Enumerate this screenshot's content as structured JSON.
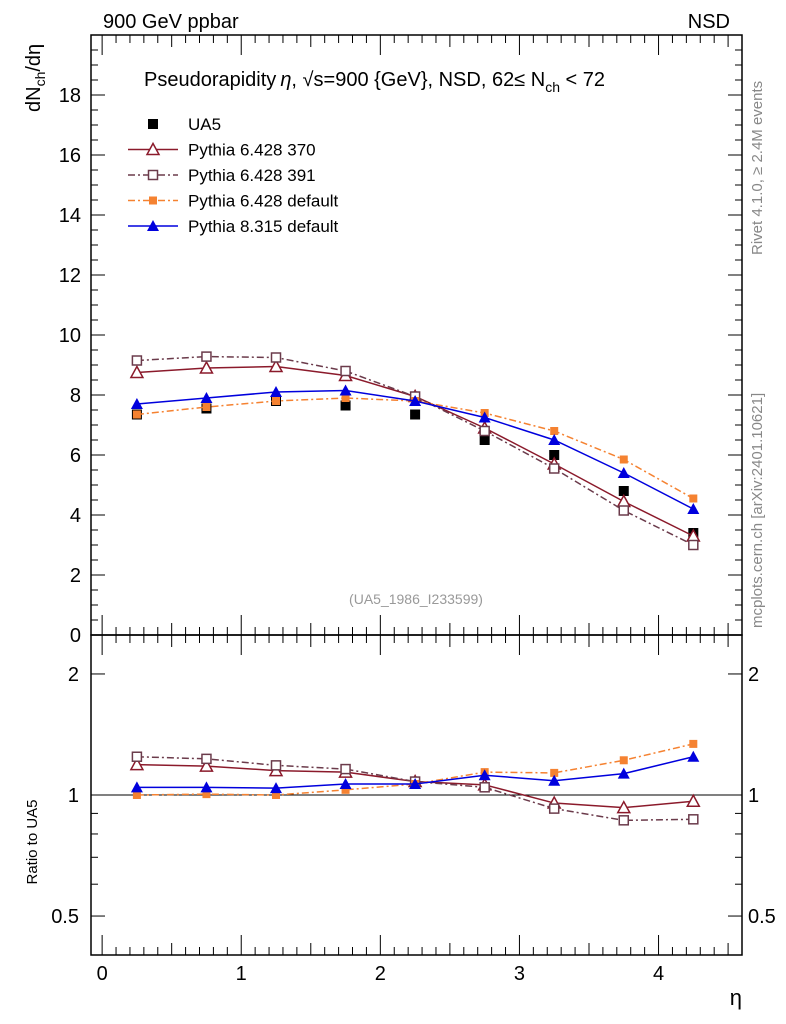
{
  "header": {
    "left": "900 GeV ppbar",
    "right": "NSD"
  },
  "side_labels": {
    "rivet": "Rivet 4.1.0, ≥ 2.4M events",
    "mcplots": "mcplots.cern.ch [arXiv:2401.10621]"
  },
  "colors": {
    "ua5": "#000000",
    "pythia6_370": "#8b1a2b",
    "pythia6_391": "#6b3b4b",
    "pythia6_default": "#f58231",
    "pythia8_default": "#0000dd"
  },
  "chart_data": [
    {
      "type": "line",
      "title": "Pseudorapidity η, √s=900 {GeV}, NSD, 62≤ N_ch < 72",
      "title_parts": {
        "prefix": "Pseudorapidity",
        "eta": "η",
        "sqrt_s": ", √s=900 {GeV}, NSD, 62",
        "le": "≤",
        "n": " N",
        "ch": "ch",
        "lt": " < 72"
      },
      "watermark": "(UA5_1986_I233599)",
      "xlabel": "η",
      "ylabel": {
        "d": "dN",
        "sub": "ch",
        "rest": "/dη"
      },
      "xlim": [
        -0.08,
        4.6
      ],
      "ylim": [
        0,
        20
      ],
      "yticks": [
        0,
        2,
        4,
        6,
        8,
        10,
        12,
        14,
        16,
        18
      ],
      "ytick_labels": [
        "0",
        "2",
        "4",
        "6",
        "8",
        "10",
        "12",
        "14",
        "16",
        "18"
      ],
      "x": [
        0.25,
        0.75,
        1.25,
        1.75,
        2.25,
        2.75,
        3.25,
        3.75,
        4.25
      ],
      "series": [
        {
          "name": "UA5",
          "marker": "filled-square",
          "line": "none",
          "values": [
            7.35,
            7.55,
            7.8,
            7.65,
            7.35,
            6.5,
            6.0,
            4.8,
            3.4
          ]
        },
        {
          "name": "Pythia 6.428 370",
          "marker": "open-triangle",
          "line": "solid",
          "values": [
            8.75,
            8.9,
            8.95,
            8.65,
            7.95,
            6.9,
            5.7,
            4.45,
            3.3
          ]
        },
        {
          "name": "Pythia 6.428 391",
          "marker": "open-square",
          "line": "dashdot",
          "values": [
            9.15,
            9.28,
            9.25,
            8.8,
            7.95,
            6.8,
            5.55,
            4.15,
            3.0
          ]
        },
        {
          "name": "Pythia 6.428 default",
          "marker": "small-filled-square",
          "line": "dashdot",
          "values": [
            7.35,
            7.6,
            7.8,
            7.9,
            7.8,
            7.4,
            6.8,
            5.85,
            4.55
          ]
        },
        {
          "name": "Pythia 8.315 default",
          "marker": "filled-triangle",
          "line": "solid",
          "values": [
            7.7,
            7.9,
            8.1,
            8.15,
            7.8,
            7.25,
            6.5,
            5.4,
            4.2
          ]
        }
      ]
    },
    {
      "type": "line",
      "ylabel": "Ratio to UA5",
      "ylim": [
        0.4,
        2.5
      ],
      "y_scale": "log",
      "yticks": [
        0.5,
        1,
        2
      ],
      "ytick_labels": [
        "0.5",
        "1",
        "2"
      ],
      "xticks": [
        0,
        1,
        2,
        3,
        4
      ],
      "xtick_labels": [
        "0",
        "1",
        "2",
        "3",
        "4"
      ],
      "reference_line": 1,
      "x": [
        0.25,
        0.75,
        1.25,
        1.75,
        2.25,
        2.75,
        3.25,
        3.75,
        4.25
      ],
      "series": [
        {
          "name": "Pythia 6.428 370",
          "values": [
            1.19,
            1.18,
            1.15,
            1.14,
            1.08,
            1.06,
            0.955,
            0.93,
            0.965
          ]
        },
        {
          "name": "Pythia 6.428 391",
          "values": [
            1.245,
            1.23,
            1.185,
            1.16,
            1.08,
            1.045,
            0.925,
            0.865,
            0.87
          ]
        },
        {
          "name": "Pythia 6.428 default",
          "values": [
            1.0,
            1.005,
            1.0,
            1.03,
            1.065,
            1.14,
            1.135,
            1.22,
            1.34
          ]
        },
        {
          "name": "Pythia 8.315 default",
          "values": [
            1.045,
            1.045,
            1.04,
            1.065,
            1.065,
            1.12,
            1.085,
            1.13,
            1.245
          ]
        }
      ]
    }
  ]
}
